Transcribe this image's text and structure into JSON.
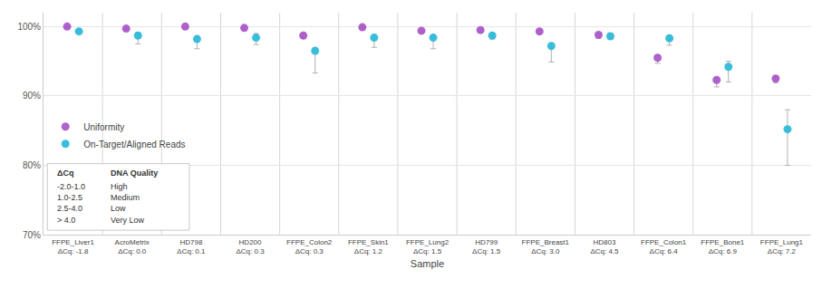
{
  "chart_data": {
    "type": "scatter",
    "xlabel": "Sample",
    "categories": [
      "FFPE_Liver1",
      "AcroMetrix",
      "HD798",
      "HD200",
      "FFPE_Colon2",
      "FFPE_Skin1",
      "FFPE_Lung2",
      "HD799",
      "FFPE_Breast1",
      "HD803",
      "FFPE_Colon1",
      "FFPE_Bone1",
      "FFPE_Lung1"
    ],
    "category_notes": [
      "ΔCq: -1.8",
      "ΔCq: 0.0",
      "ΔCq: 0.1",
      "ΔCq: 0.3",
      "ΔCq: 0.3",
      "ΔCq: 1.2",
      "ΔCq: 1.5",
      "ΔCq: 1.5",
      "ΔCq: 3.0",
      "ΔCq: 4.5",
      "ΔCq: 6.4",
      "ΔCq: 6.9",
      "ΔCq: 7.2"
    ],
    "series": [
      {
        "name": "Uniformity",
        "color": "#A855C8",
        "values": [
          100.0,
          99.7,
          100.0,
          99.8,
          98.7,
          99.9,
          99.4,
          99.5,
          99.3,
          98.8,
          95.5,
          92.3,
          92.5
        ],
        "err_low": [
          0.2,
          0.2,
          0.3,
          0.2,
          0.4,
          0.1,
          0.4,
          0.3,
          0.4,
          0.5,
          0.8,
          1.0,
          0.6
        ],
        "err_high": [
          0.0,
          0.0,
          0.0,
          0.0,
          0.3,
          0.0,
          0.1,
          0.1,
          0.1,
          0.2,
          0.3,
          0.3,
          0.2
        ]
      },
      {
        "name": "On-Target/Aligned Reads",
        "color": "#29B8D8",
        "values": [
          99.3,
          98.7,
          98.2,
          98.4,
          96.5,
          98.4,
          98.4,
          98.7,
          97.2,
          98.6,
          98.3,
          94.2,
          85.2
        ],
        "err_low": [
          0.2,
          1.2,
          1.4,
          1.0,
          3.2,
          1.4,
          1.6,
          0.5,
          2.3,
          0.4,
          1.0,
          2.2,
          5.2
        ],
        "err_high": [
          0.2,
          0.4,
          0.4,
          0.6,
          0.4,
          0.4,
          0.4,
          0.3,
          0.4,
          0.4,
          0.4,
          0.8,
          2.8
        ]
      }
    ],
    "marker": "circle",
    "ylim": [
      70,
      102
    ],
    "yticks": [
      {
        "value": 70,
        "label": "70%"
      },
      {
        "value": 80,
        "label": "80%"
      },
      {
        "value": 90,
        "label": "90%"
      },
      {
        "value": 100,
        "label": "100%"
      }
    ],
    "grid": true,
    "legend": "lower left",
    "table": {
      "header": [
        "ΔCq",
        "DNA Quality"
      ],
      "rows": [
        [
          "-2.0-1.0",
          "High"
        ],
        [
          "1.0-2.5",
          "Medium"
        ],
        [
          "2.5-4.0",
          "Low"
        ],
        [
          "> 4.0",
          "Very Low"
        ]
      ]
    }
  }
}
